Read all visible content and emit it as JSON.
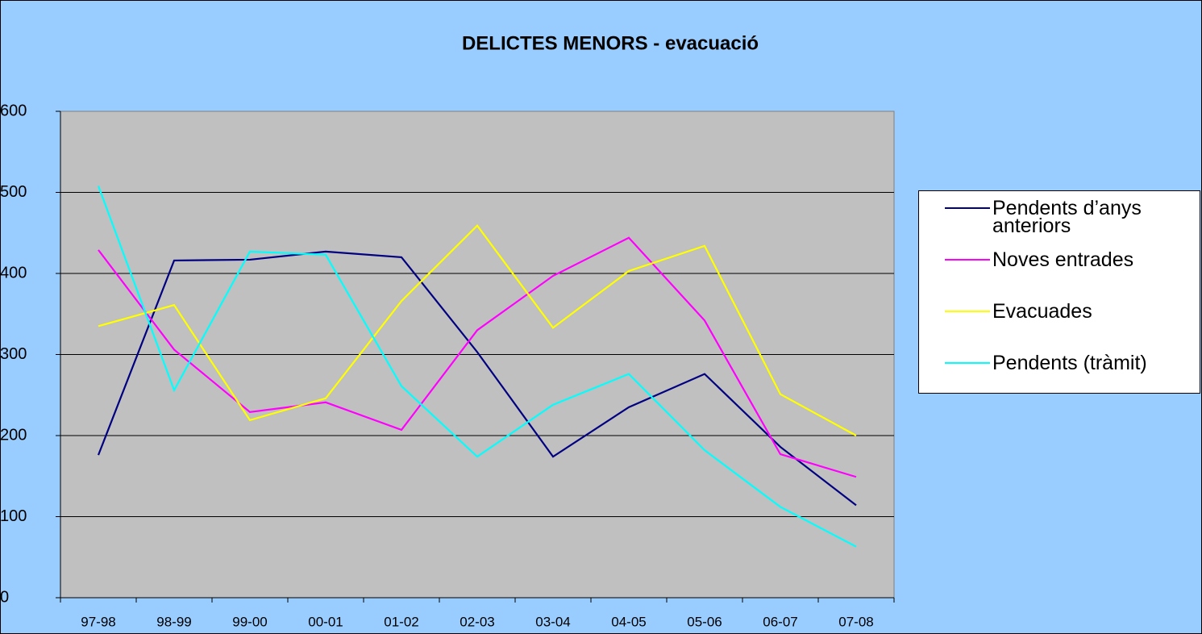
{
  "chart_data": {
    "type": "line",
    "title": "DELICTES MENORS - evacuació",
    "categories": [
      "97-98",
      "98-99",
      "99-00",
      "00-01",
      "01-02",
      "02-03",
      "03-04",
      "04-05",
      "05-06",
      "06-07",
      "07-08"
    ],
    "series": [
      {
        "name": "Pendents d’anys anteriors",
        "color": "#000080",
        "values": [
          176,
          416,
          417,
          427,
          420,
          303,
          174,
          235,
          276,
          186,
          114
        ]
      },
      {
        "name": "Noves entrades",
        "color": "#ff00ff",
        "values": [
          429,
          306,
          229,
          241,
          207,
          330,
          397,
          444,
          342,
          177,
          149
        ]
      },
      {
        "name": "Evacuades",
        "color": "#ffff00",
        "values": [
          335,
          361,
          219,
          246,
          366,
          459,
          333,
          403,
          434,
          251,
          200
        ]
      },
      {
        "name": "Pendents (tràmit)",
        "color": "#00ffff",
        "values": [
          508,
          256,
          427,
          423,
          261,
          174,
          238,
          276,
          182,
          112,
          63
        ]
      }
    ],
    "ylim": [
      0,
      600
    ],
    "yticks": [
      0,
      100,
      200,
      300,
      400,
      500,
      600
    ],
    "grid": true,
    "legend": "right"
  }
}
